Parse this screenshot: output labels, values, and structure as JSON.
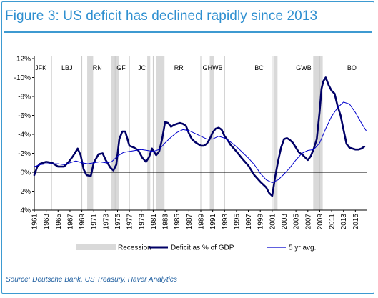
{
  "title": "Figure 3: US deficit has declined rapidly since 2013",
  "source": "Source: Deutsche Bank, US Treasury, Haver Analytics",
  "colors": {
    "accent": "#2e8fd0",
    "deficit": "#000066",
    "avg": "#0000cc",
    "recession": "#d9d9d9"
  },
  "chart_data": {
    "type": "line",
    "xlim": [
      1961,
      2017
    ],
    "ylim": [
      4,
      -12
    ],
    "inverted_y": true,
    "y_ticks": [
      -12,
      -10,
      -8,
      -6,
      -4,
      -2,
      0,
      2,
      4
    ],
    "y_tick_labels": [
      "-12%",
      "-10%",
      "-8%",
      "-6%",
      "-4%",
      "-2%",
      "0%",
      "2%",
      "4%"
    ],
    "x_ticks": [
      1961,
      1963,
      1965,
      1967,
      1969,
      1971,
      1973,
      1975,
      1977,
      1979,
      1981,
      1983,
      1985,
      1987,
      1989,
      1991,
      1993,
      1995,
      1997,
      1999,
      2001,
      2003,
      2005,
      2007,
      2009,
      2011,
      2013,
      2015
    ],
    "x_tick_labels": [
      "1961",
      "1963",
      "1965",
      "1967",
      "1969",
      "1971",
      "1973",
      "1975",
      "1977",
      "1979",
      "1981",
      "1983",
      "1985",
      "1987",
      "1989",
      "1991",
      "1993",
      "1995",
      "1997",
      "1999",
      "2001",
      "2003",
      "2005",
      "2007",
      "2009",
      "2011",
      "2013",
      "2015"
    ],
    "president_labels": [
      {
        "label": "JFK",
        "x": 1962.1
      },
      {
        "label": "LBJ",
        "x": 1966.5
      },
      {
        "label": "RN",
        "x": 1971.6
      },
      {
        "label": "GF",
        "x": 1975.6
      },
      {
        "label": "JC",
        "x": 1979.1
      },
      {
        "label": "RR",
        "x": 1985.3
      },
      {
        "label": "GHWB",
        "x": 1991.0
      },
      {
        "label": "BC",
        "x": 1998.8
      },
      {
        "label": "GWB",
        "x": 2006.3
      },
      {
        "label": "BO",
        "x": 2014.4
      }
    ],
    "president_dividers": [
      1963.9,
      1969.0,
      1974.6,
      1977.0,
      1981.0,
      1989.0,
      1993.0,
      2001.0,
      2009.0
    ],
    "recessions": [
      [
        1969.9,
        1970.9
      ],
      [
        1973.9,
        1975.2
      ],
      [
        1980.0,
        1980.5
      ],
      [
        1981.5,
        1982.9
      ],
      [
        1990.5,
        1991.2
      ],
      [
        2001.2,
        2001.9
      ],
      [
        2007.9,
        2009.5
      ]
    ],
    "series": [
      {
        "name": "Deficit as % of GDP",
        "x": [
          1961,
          1961.5,
          1962,
          1963,
          1964,
          1965,
          1966,
          1966.8,
          1967.5,
          1968.3,
          1968.8,
          1969.3,
          1969.8,
          1970.5,
          1971,
          1971.8,
          1972.5,
          1973,
          1973.8,
          1974.3,
          1974.8,
          1975.3,
          1975.8,
          1976.3,
          1977,
          1977.8,
          1978.5,
          1979.2,
          1979.8,
          1980.3,
          1980.8,
          1981.5,
          1982,
          1982.5,
          1983,
          1983.5,
          1984,
          1984.5,
          1985,
          1985.5,
          1986,
          1986.5,
          1987,
          1987.5,
          1988,
          1988.5,
          1989,
          1989.5,
          1990,
          1990.5,
          1991,
          1991.5,
          1992,
          1992.5,
          1993,
          1993.5,
          1994,
          1995,
          1996,
          1997,
          1998,
          1999,
          2000,
          2000.5,
          2001,
          2001.5,
          2002,
          2002.5,
          2003,
          2003.5,
          2004,
          2004.5,
          2005,
          2005.5,
          2006,
          2006.5,
          2007,
          2007.5,
          2008,
          2008.5,
          2009,
          2009.3,
          2009.6,
          2010,
          2010.5,
          2011,
          2011.5,
          2012,
          2012.5,
          2013,
          2013.5,
          2014,
          2014.5,
          2015,
          2015.5,
          2016,
          2016.5
        ],
        "y": [
          0.3,
          -0.6,
          -0.9,
          -1.1,
          -1.0,
          -0.6,
          -0.6,
          -1.1,
          -1.7,
          -2.5,
          -1.8,
          -0.3,
          0.3,
          0.4,
          -1.0,
          -1.9,
          -2.0,
          -1.3,
          -0.5,
          -0.2,
          -0.8,
          -3.5,
          -4.3,
          -4.3,
          -2.8,
          -2.6,
          -2.3,
          -1.5,
          -1.1,
          -1.6,
          -2.5,
          -1.8,
          -2.2,
          -3.5,
          -5.3,
          -5.2,
          -4.8,
          -5.0,
          -5.1,
          -5.2,
          -5.1,
          -4.9,
          -4.1,
          -3.5,
          -3.2,
          -3.0,
          -2.8,
          -2.8,
          -3.0,
          -3.5,
          -4.2,
          -4.6,
          -4.7,
          -4.5,
          -3.8,
          -3.4,
          -2.9,
          -2.2,
          -1.4,
          -0.7,
          0.3,
          1.0,
          1.6,
          2.2,
          2.5,
          0.5,
          -1.2,
          -2.6,
          -3.5,
          -3.6,
          -3.4,
          -3.1,
          -2.6,
          -2.1,
          -1.9,
          -1.6,
          -1.3,
          -1.7,
          -2.5,
          -3.5,
          -6.5,
          -8.8,
          -9.6,
          -10.0,
          -9.2,
          -8.6,
          -8.3,
          -7.0,
          -6.0,
          -4.5,
          -3.0,
          -2.6,
          -2.5,
          -2.4,
          -2.4,
          -2.5,
          -2.7
        ]
      },
      {
        "name": "5 yr avg.",
        "x": [
          1961,
          1962,
          1963,
          1964,
          1965,
          1966,
          1967,
          1968,
          1969,
          1970,
          1971,
          1972,
          1973,
          1974,
          1975,
          1976,
          1977,
          1978,
          1979,
          1980,
          1981,
          1982,
          1983,
          1984,
          1985,
          1986,
          1987,
          1988,
          1989,
          1990,
          1991,
          1992,
          1993,
          1994,
          1995,
          1996,
          1997,
          1998,
          1999,
          2000,
          2001,
          2002,
          2003,
          2004,
          2005,
          2006,
          2007,
          2008,
          2009,
          2010,
          2011,
          2012,
          2013,
          2014,
          2015,
          2016,
          2016.8
        ],
        "y": [
          -0.6,
          -0.8,
          -0.9,
          -0.9,
          -0.9,
          -0.8,
          -1.0,
          -1.2,
          -1.0,
          -0.9,
          -1.0,
          -1.1,
          -1.0,
          -1.1,
          -1.7,
          -2.1,
          -2.2,
          -2.3,
          -2.4,
          -2.3,
          -2.2,
          -2.4,
          -3.1,
          -3.7,
          -4.2,
          -4.5,
          -4.4,
          -4.1,
          -3.8,
          -3.5,
          -3.5,
          -3.8,
          -3.6,
          -3.2,
          -2.7,
          -2.1,
          -1.5,
          -0.8,
          0.1,
          0.8,
          1.1,
          0.8,
          0.2,
          -0.5,
          -1.3,
          -2.0,
          -2.3,
          -2.4,
          -3.1,
          -4.6,
          -5.9,
          -6.8,
          -7.4,
          -7.2,
          -6.3,
          -5.2,
          -4.4
        ]
      }
    ],
    "legend": {
      "position": "bottom",
      "entries": [
        {
          "label": "Recession",
          "kind": "band"
        },
        {
          "label": "Deficit as % of GDP",
          "kind": "thick-line"
        },
        {
          "label": "5 yr avg.",
          "kind": "thin-line"
        }
      ]
    },
    "grid": false
  }
}
